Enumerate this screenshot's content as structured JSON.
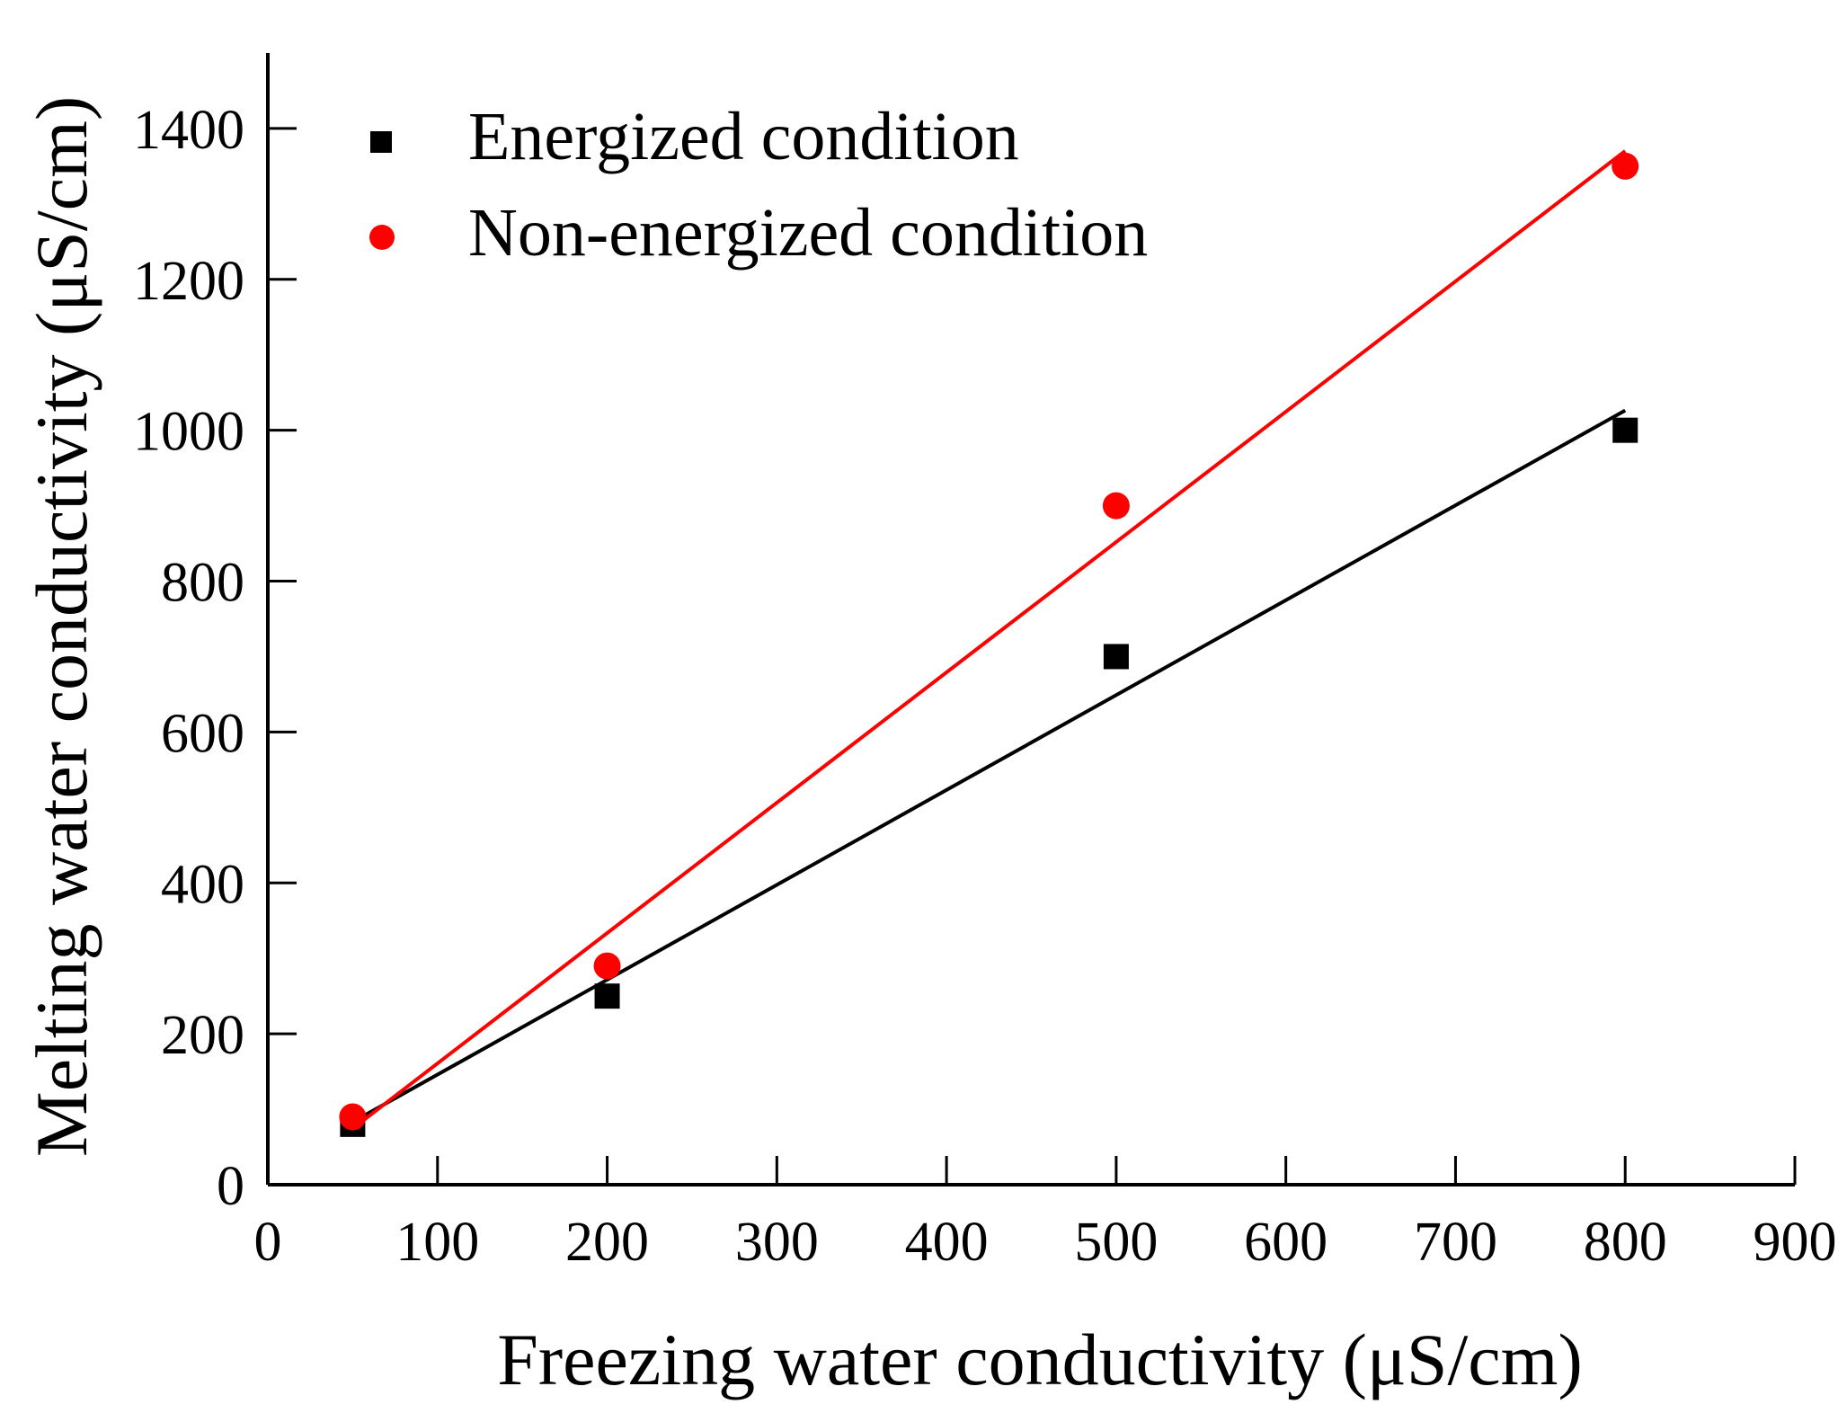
{
  "chart_data": {
    "type": "scatter",
    "title": "",
    "xlabel": "Freezing water conductivity (μS/cm)",
    "ylabel": "Melting water conductivity (μS/cm)",
    "xlim": [
      0,
      900
    ],
    "ylim": [
      0,
      1500
    ],
    "xticks": [
      0,
      100,
      200,
      300,
      400,
      500,
      600,
      700,
      800,
      900
    ],
    "yticks": [
      0,
      200,
      400,
      600,
      800,
      1000,
      1200,
      1400
    ],
    "grid": false,
    "legend_position": "top-left",
    "series": [
      {
        "name": "Energized condition",
        "marker": "square",
        "color": "#000000",
        "x": [
          50,
          200,
          500,
          800
        ],
        "y": [
          80,
          250,
          700,
          1000
        ],
        "fit": "linear"
      },
      {
        "name": "Non-energized condition",
        "marker": "circle",
        "color": "#ff0000",
        "x": [
          50,
          200,
          500,
          800
        ],
        "y": [
          90,
          290,
          900,
          1350
        ],
        "fit": "linear"
      }
    ]
  }
}
